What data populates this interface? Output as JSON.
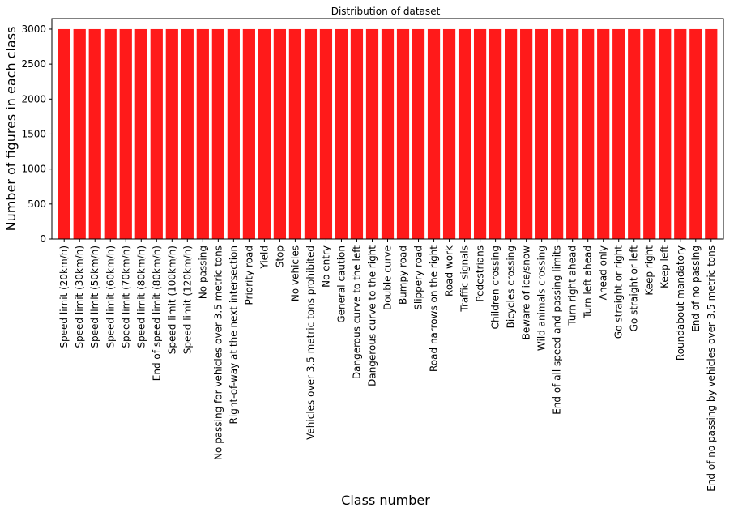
{
  "chart_data": {
    "type": "bar",
    "title": "Distribution of dataset",
    "xlabel": "Class number",
    "ylabel": "Number of figures in each class",
    "ylim": [
      0,
      3150
    ],
    "yticks": [
      0,
      500,
      1000,
      1500,
      2000,
      2500,
      3000
    ],
    "grid": false,
    "bar_color": "#ff1a1a",
    "categories": [
      "Speed limit (20km/h)",
      "Speed limit (30km/h)",
      "Speed limit (50km/h)",
      "Speed limit (60km/h)",
      "Speed limit (70km/h)",
      "Speed limit (80km/h)",
      "End of speed limit (80km/h)",
      "Speed limit (100km/h)",
      "Speed limit (120km/h)",
      "No passing",
      "No passing for vehicles over 3.5 metric tons",
      "Right-of-way at the next intersection",
      "Priority road",
      "Yield",
      "Stop",
      "No vehicles",
      "Vehicles over 3.5 metric tons prohibited",
      "No entry",
      "General caution",
      "Dangerous curve to the left",
      "Dangerous curve to the right",
      "Double curve",
      "Bumpy road",
      "Slippery road",
      "Road narrows on the right",
      "Road work",
      "Traffic signals",
      "Pedestrians",
      "Children crossing",
      "Bicycles crossing",
      "Beware of ice/snow",
      "Wild animals crossing",
      "End of all speed and passing limits",
      "Turn right ahead",
      "Turn left ahead",
      "Ahead only",
      "Go straight or right",
      "Go straight or left",
      "Keep right",
      "Keep left",
      "Roundabout mandatory",
      "End of no passing",
      "End of no passing by vehicles over 3.5 metric tons"
    ],
    "values": [
      3000,
      3000,
      3000,
      3000,
      3000,
      3000,
      3000,
      3000,
      3000,
      3000,
      3000,
      3000,
      3000,
      3000,
      3000,
      3000,
      3000,
      3000,
      3000,
      3000,
      3000,
      3000,
      3000,
      3000,
      3000,
      3000,
      3000,
      3000,
      3000,
      3000,
      3000,
      3000,
      3000,
      3000,
      3000,
      3000,
      3000,
      3000,
      3000,
      3000,
      3000,
      3000,
      3000
    ]
  }
}
